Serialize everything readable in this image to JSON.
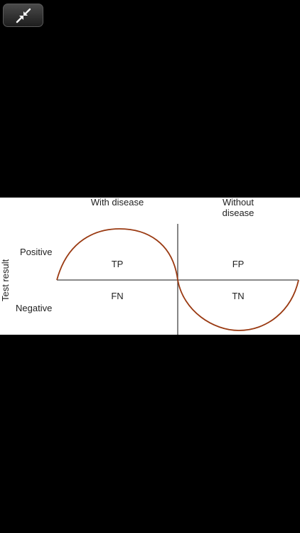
{
  "toolbar": {
    "exit_fullscreen_icon": "collapse-arrows-icon"
  },
  "figure": {
    "columns": {
      "with_disease": "With disease",
      "without_disease_line1": "Without",
      "without_disease_line2": "disease"
    },
    "rows": {
      "axis_label": "Test result",
      "positive": "Positive",
      "negative": "Negative"
    },
    "cells": {
      "tp": "TP",
      "fp": "FP",
      "fn": "FN",
      "tn": "TN"
    },
    "curve_color": "#9a3a12"
  }
}
